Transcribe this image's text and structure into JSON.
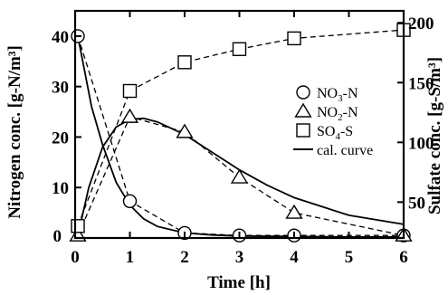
{
  "chart_data": {
    "type": "line",
    "xlabel": "Time [h]",
    "ylabel_left": "Nitrogen conc. [g-N/m³]",
    "ylabel_right": "Sulfate conc. [g-S/m³]",
    "xlim": [
      0,
      6
    ],
    "ylim_left": [
      0,
      45
    ],
    "ylim_right": [
      20,
      210
    ],
    "x_ticks": [
      0,
      1,
      2,
      3,
      4,
      5,
      6
    ],
    "y_left_ticks": [
      10,
      20,
      30,
      40
    ],
    "y_right_ticks": [
      50,
      100,
      150,
      200
    ],
    "tick_label_zero": "0",
    "grid": false,
    "legend_position": "right",
    "series": [
      {
        "name": "NO3-N",
        "marker": "circle",
        "axis": "left",
        "x": [
          0.05,
          1,
          2,
          3,
          4,
          6
        ],
        "y": [
          40,
          7.3,
          1,
          0.5,
          0.5,
          0.5
        ]
      },
      {
        "name": "NO2-N",
        "marker": "triangle",
        "axis": "left",
        "x": [
          0.05,
          1,
          2,
          3,
          4,
          6
        ],
        "y": [
          0.5,
          24,
          21,
          12,
          5,
          0.5
        ]
      },
      {
        "name": "SO4-S",
        "marker": "square",
        "axis": "right",
        "x": [
          0.05,
          1,
          2,
          3,
          4,
          6
        ],
        "y": [
          30,
          143,
          167,
          178,
          187,
          194
        ]
      }
    ],
    "calc_curves": [
      {
        "of": "NO3-N",
        "x": [
          0.05,
          0.3,
          0.5,
          0.75,
          1,
          1.25,
          1.5,
          2,
          2.5,
          3,
          4,
          5,
          6
        ],
        "y": [
          40,
          26,
          18.5,
          11,
          6.5,
          3.8,
          2.3,
          1,
          0.6,
          0.4,
          0.3,
          0.2,
          0.2
        ]
      },
      {
        "of": "NO2-N",
        "x": [
          0.05,
          0.25,
          0.5,
          0.75,
          1,
          1.25,
          1.5,
          2,
          2.5,
          3,
          3.5,
          4,
          5,
          6
        ],
        "y": [
          0.5,
          10,
          18,
          22,
          23.5,
          23.7,
          23,
          20.5,
          17,
          13.5,
          10.5,
          8,
          4.5,
          2.7
        ]
      }
    ],
    "legend": [
      {
        "marker": "circle",
        "label_main": "NO",
        "label_sub": "3",
        "label_rest": "-N"
      },
      {
        "marker": "triangle",
        "label_main": "NO",
        "label_sub": "2",
        "label_rest": "-N"
      },
      {
        "marker": "square",
        "label_main": "SO",
        "label_sub": "4",
        "label_rest": "-S"
      },
      {
        "marker": "line",
        "label_main": "cal. curve",
        "label_sub": "",
        "label_rest": ""
      }
    ]
  }
}
